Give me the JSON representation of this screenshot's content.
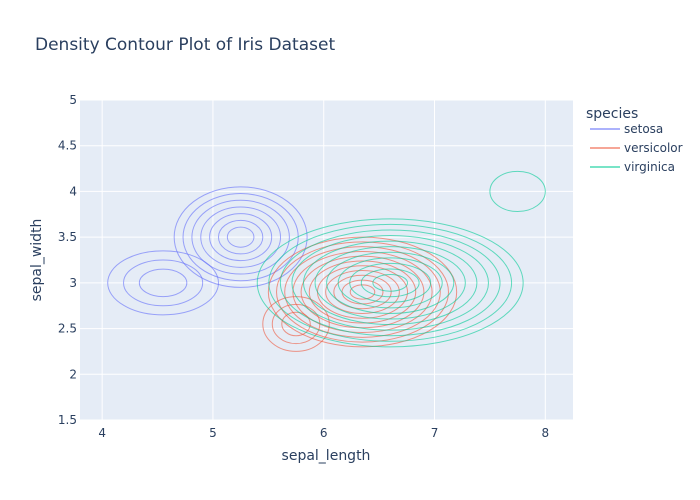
{
  "chart_data": {
    "type": "density-contour",
    "title": "Density Contour Plot of Iris Dataset",
    "xlabel": "sepal_length",
    "ylabel": "sepal_width",
    "xlim": [
      3.8,
      8.25
    ],
    "ylim": [
      1.5,
      5
    ],
    "xticks": [
      4,
      5,
      6,
      7,
      8
    ],
    "yticks": [
      1.5,
      2,
      2.5,
      3,
      3.5,
      4,
      4.5,
      5
    ],
    "grid": true,
    "legend": {
      "title": "species",
      "position": "right"
    },
    "series": [
      {
        "name": "setosa",
        "color": "#636efa",
        "peaks": [
          {
            "x": 5.25,
            "y": 3.5,
            "sx": 0.6,
            "sy": 0.55,
            "levels": 7
          },
          {
            "x": 4.55,
            "y": 3.0,
            "sx": 0.5,
            "sy": 0.35,
            "levels": 3
          }
        ]
      },
      {
        "name": "versicolor",
        "color": "#ef553b",
        "peaks": [
          {
            "x": 6.35,
            "y": 2.9,
            "sx": 0.85,
            "sy": 0.6,
            "levels": 11
          },
          {
            "x": 5.75,
            "y": 2.55,
            "sx": 0.3,
            "sy": 0.3,
            "levels": 3
          }
        ]
      },
      {
        "name": "virginica",
        "color": "#00cc96",
        "peaks": [
          {
            "x": 6.6,
            "y": 3.0,
            "sx": 1.2,
            "sy": 0.7,
            "levels": 11
          },
          {
            "x": 7.75,
            "y": 4.0,
            "sx": 0.25,
            "sy": 0.22,
            "levels": 1
          }
        ]
      }
    ]
  }
}
